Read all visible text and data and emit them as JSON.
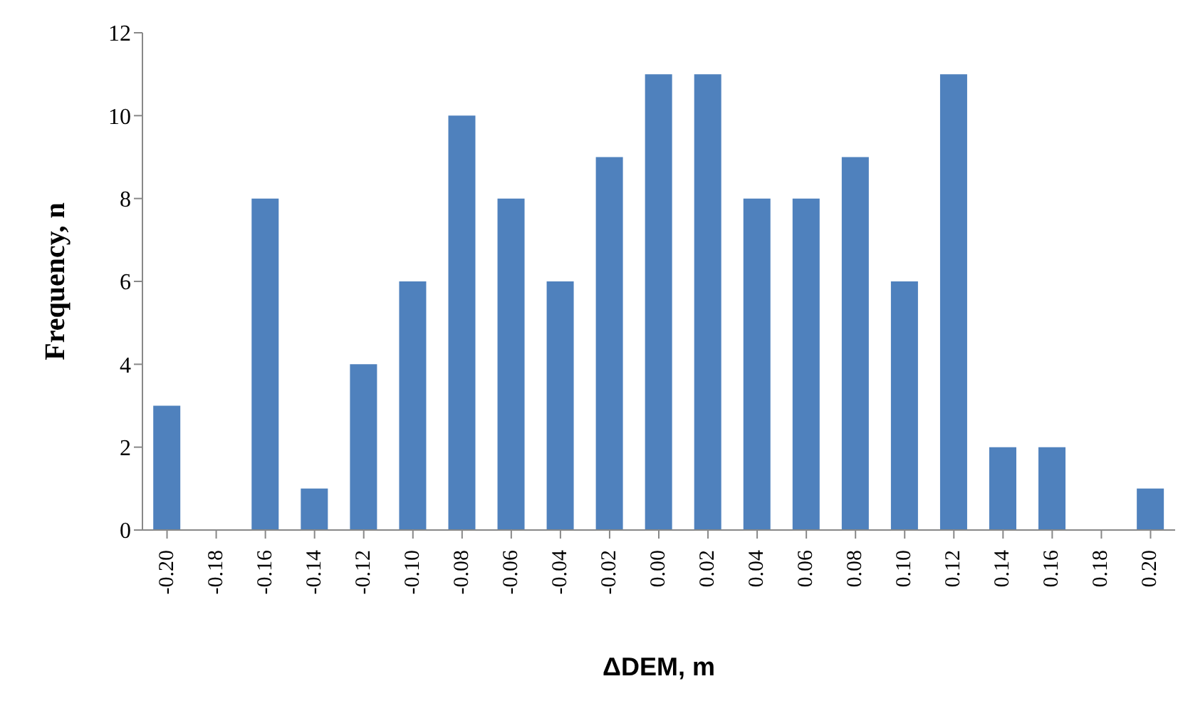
{
  "chart_data": {
    "type": "bar",
    "xlabel": "ΔDEM, m",
    "ylabel": "Frequency, n",
    "categories": [
      "-0.20",
      "-0.18",
      "-0.16",
      "-0.14",
      "-0.12",
      "-0.10",
      "-0.08",
      "-0.06",
      "-0.04",
      "-0.02",
      "0.00",
      "0.02",
      "0.04",
      "0.06",
      "0.08",
      "0.10",
      "0.12",
      "0.14",
      "0.16",
      "0.18",
      "0.20"
    ],
    "values": [
      3,
      0,
      8,
      1,
      4,
      6,
      10,
      8,
      6,
      9,
      11,
      11,
      8,
      8,
      9,
      6,
      11,
      2,
      2,
      0,
      1
    ],
    "color": "#4f81bd",
    "ylim": [
      0,
      12
    ],
    "yticks": [
      0,
      2,
      4,
      6,
      8,
      10,
      12
    ],
    "grid": false,
    "legend": false
  }
}
